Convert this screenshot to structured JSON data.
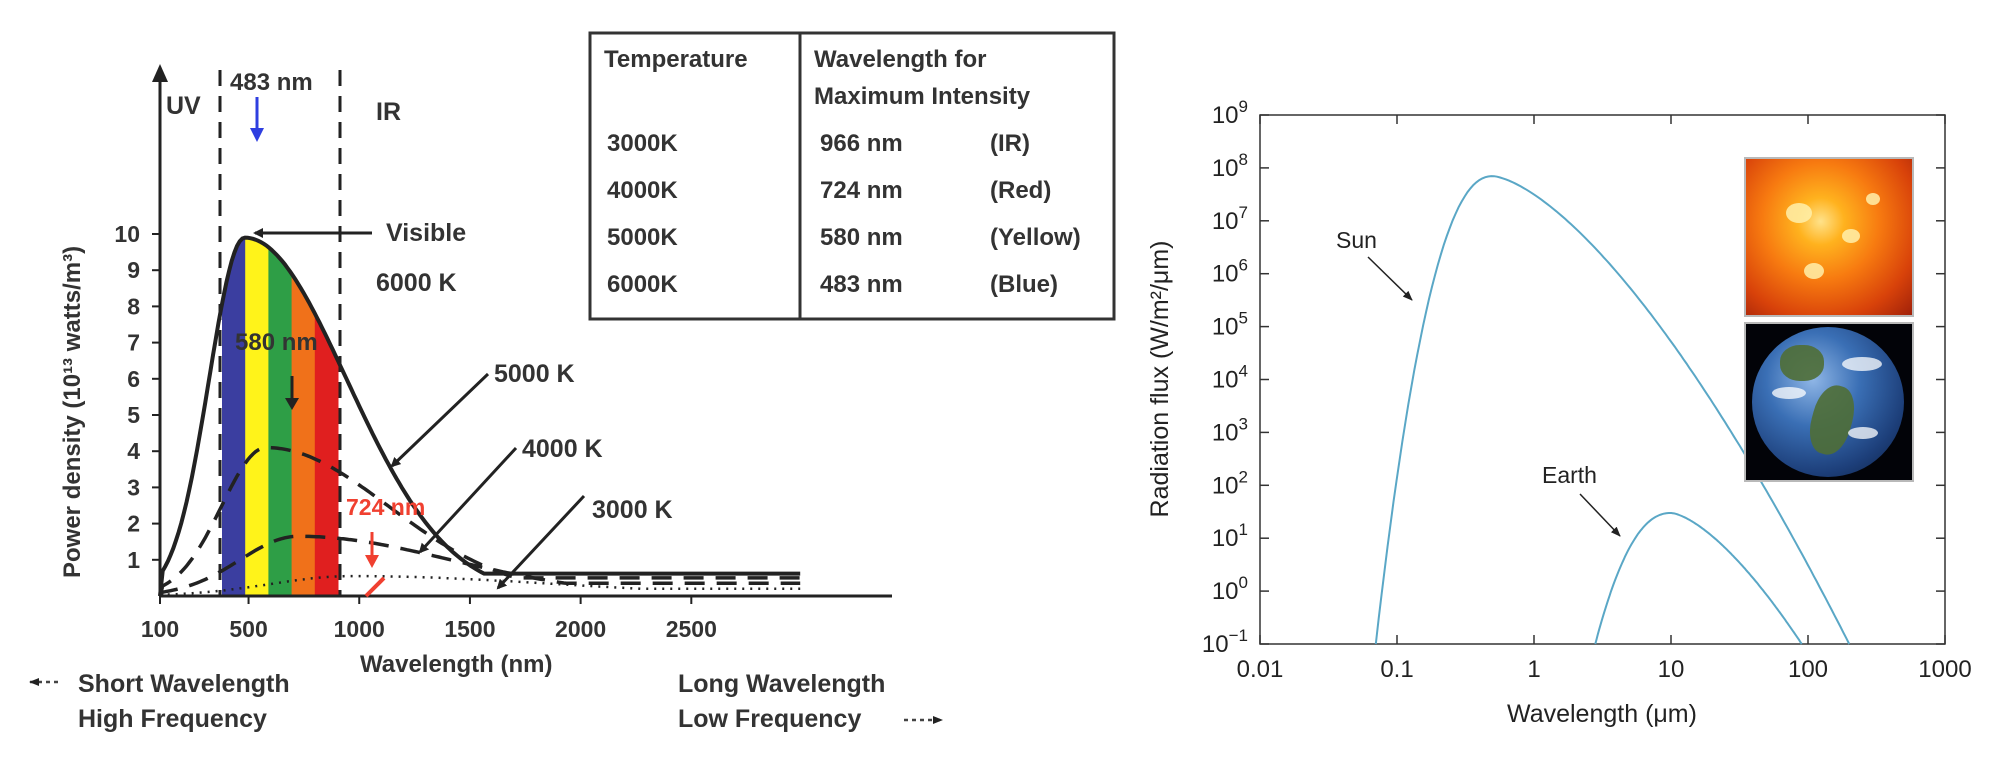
{
  "chart_data": [
    {
      "type": "line",
      "title": "",
      "xlabel": "Wavelength (nm)",
      "ylabel": "Power density (10¹³ watts/m³)",
      "x_ticks": [
        100,
        500,
        1000,
        1500,
        2000,
        2500
      ],
      "y_ticks": [
        1,
        2,
        3,
        4,
        5,
        6,
        7,
        8,
        9,
        10
      ],
      "xlim": [
        100,
        3000
      ],
      "ylim": [
        0,
        10.5
      ],
      "region_labels": {
        "uv": "UV",
        "ir": "IR",
        "visible": "Visible"
      },
      "peak_labels": {
        "peak_6000": "483 nm",
        "peak_5000": "580 nm",
        "peak_4000": "724 nm"
      },
      "series": [
        {
          "name": "6000 K",
          "peak_nm": 483,
          "peak_value": 9.9
        },
        {
          "name": "5000 K",
          "peak_nm": 580,
          "peak_value": 4.1
        },
        {
          "name": "4000 K",
          "peak_nm": 724,
          "peak_value": 1.65
        },
        {
          "name": "3000 K",
          "peak_nm": 966,
          "peak_value": 0.55
        }
      ],
      "visible_bands": [
        "#3b3ea0",
        "#fff31a",
        "#2e9e46",
        "#f0711a",
        "#e01f1f"
      ],
      "footer": {
        "short_line1": "Short Wavelength",
        "short_line2": "High Frequency",
        "long_line1": "Long Wavelength",
        "long_line2": "Low Frequency"
      }
    },
    {
      "type": "table",
      "headers": [
        "Temperature",
        "Wavelength for",
        "Maximum Intensity"
      ],
      "rows": [
        {
          "temp": "3000K",
          "wavelength": "966 nm",
          "color": "(IR)"
        },
        {
          "temp": "4000K",
          "wavelength": "724 nm",
          "color": "(Red)"
        },
        {
          "temp": "5000K",
          "wavelength": "580 nm",
          "color": "(Yellow)"
        },
        {
          "temp": "6000K",
          "wavelength": "483 nm",
          "color": "(Blue)"
        }
      ]
    },
    {
      "type": "line",
      "title": "",
      "xlabel": "Wavelength (μm)",
      "ylabel": "Radiation flux (W/m²/μm)",
      "x_scale": "log",
      "y_scale": "log",
      "xlim": [
        0.01,
        1000
      ],
      "ylim": [
        0.1,
        1000000000
      ],
      "x_ticks": [
        "0.01",
        "0.1",
        "1",
        "10",
        "100",
        "1000"
      ],
      "y_tick_exponents": [
        "−1",
        "0",
        "1",
        "2",
        "3",
        "4",
        "5",
        "6",
        "7",
        "8",
        "9"
      ],
      "series": [
        {
          "name": "Sun",
          "peak_um": 0.5,
          "peak_flux": 70000000,
          "start_um": 0.07,
          "end_um": 200
        },
        {
          "name": "Earth",
          "peak_um": 10,
          "peak_flux": 30,
          "start_um": 2.8,
          "end_um": 90
        }
      ],
      "line_color": "#5aa7c6"
    }
  ]
}
